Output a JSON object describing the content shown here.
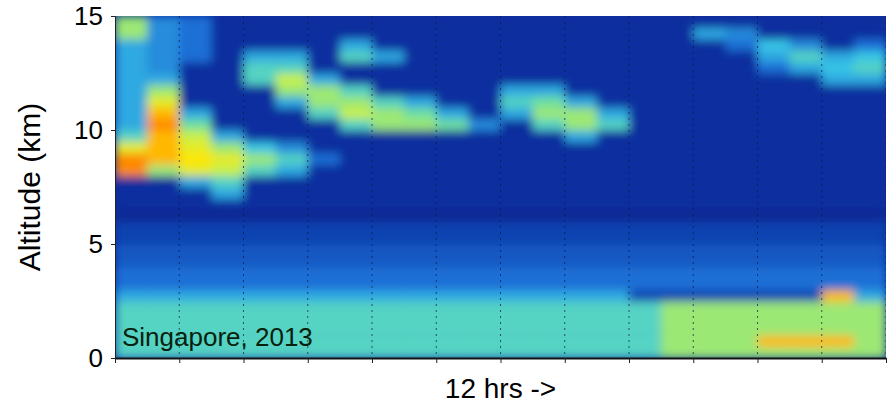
{
  "chart_data": {
    "type": "heatmap",
    "ylabel": "Altitude (km)",
    "xlabel": "12 hrs ->",
    "annotation": "Singapore, 2013",
    "xlim": [
      0,
      12
    ],
    "xticks": [
      0,
      1,
      2,
      3,
      4,
      5,
      6,
      7,
      8,
      9,
      10,
      11,
      12
    ],
    "ylim": [
      0,
      15
    ],
    "yticks": [
      0,
      5,
      10,
      15
    ],
    "tick_labels": "y",
    "grid": true,
    "zlim": [
      0,
      10
    ],
    "x": [
      0.25,
      0.75,
      1.25,
      1.75,
      2.25,
      2.75,
      3.25,
      3.75,
      4.25,
      4.75,
      5.25,
      5.75,
      6.25,
      6.75,
      7.25,
      7.75,
      8.25,
      8.75,
      9.25,
      9.75,
      10.25,
      10.75,
      11.25,
      11.75
    ],
    "y": [
      0.25,
      0.75,
      1.25,
      1.75,
      2.25,
      2.75,
      3.25,
      3.75,
      4.25,
      4.75,
      5.25,
      5.75,
      6.25,
      6.75,
      7.25,
      7.75,
      8.25,
      8.75,
      9.25,
      9.75,
      10.25,
      10.75,
      11.25,
      11.75,
      12.25,
      12.75,
      13.25,
      13.75,
      14.25,
      14.75
    ],
    "values": [
      [
        5,
        5,
        5,
        5,
        5,
        5,
        5,
        5,
        5,
        5,
        5,
        5,
        5,
        5,
        5,
        5,
        5,
        6,
        6,
        6,
        6,
        6,
        6,
        6
      ],
      [
        5,
        5,
        5,
        5,
        5,
        5,
        5,
        5,
        5,
        5,
        5,
        5,
        5,
        5,
        5,
        5,
        5,
        6,
        6,
        6,
        8,
        8,
        8,
        6
      ],
      [
        5,
        5,
        5,
        5,
        5,
        5,
        5,
        5,
        5,
        5,
        5,
        5,
        5,
        5,
        5,
        5,
        5,
        6,
        6,
        6,
        6,
        6,
        6,
        6
      ],
      [
        5,
        5,
        5,
        5,
        5,
        5,
        5,
        5,
        5,
        5,
        5,
        5,
        5,
        5,
        5,
        5,
        5,
        6,
        6,
        6,
        6,
        6,
        6,
        6
      ],
      [
        5,
        5,
        5,
        5,
        5,
        5,
        5,
        5,
        5,
        5,
        5,
        5,
        5,
        5,
        5,
        5,
        5,
        6,
        6,
        6,
        6,
        6,
        6,
        6
      ],
      [
        4,
        4,
        4,
        4,
        4,
        4,
        4,
        4,
        4,
        4,
        4,
        4,
        4,
        4,
        4,
        4,
        2,
        2,
        2,
        2,
        2,
        2,
        8,
        4
      ],
      [
        3,
        3,
        3,
        3,
        3,
        3,
        3,
        3,
        3,
        3,
        3,
        3,
        3,
        3,
        3,
        3,
        3,
        3,
        3,
        3,
        3,
        3,
        3,
        3
      ],
      [
        3,
        3,
        3,
        3,
        3,
        3,
        3,
        3,
        3,
        3,
        3,
        3,
        3,
        3,
        3,
        3,
        3,
        3,
        3,
        3,
        3,
        3,
        3,
        3
      ],
      [
        2.5,
        2.5,
        2.5,
        2.5,
        2.5,
        2.5,
        2.5,
        2.5,
        2.5,
        2.5,
        2.5,
        2.5,
        2.5,
        2.5,
        2.5,
        2.5,
        2.5,
        2.5,
        2.5,
        2.5,
        2.5,
        2.5,
        2.5,
        2.5
      ],
      [
        2.5,
        2.5,
        2.5,
        2.5,
        2.5,
        2.5,
        2.5,
        2.5,
        2.5,
        2.5,
        2.5,
        2.5,
        2.5,
        2.5,
        2.5,
        2.5,
        2.5,
        2.5,
        2.5,
        2.5,
        2.5,
        2.5,
        2.5,
        2.5
      ],
      [
        2,
        2,
        2,
        2,
        2,
        2,
        2,
        2,
        2,
        2,
        2,
        2,
        2,
        2,
        2,
        2,
        2,
        2,
        2,
        2,
        2,
        2,
        2,
        2
      ],
      [
        2,
        2,
        2,
        2,
        2,
        2,
        2,
        2,
        2,
        2,
        2,
        2,
        2,
        2,
        2,
        2,
        2,
        2,
        2,
        2,
        2,
        2,
        2,
        2
      ],
      [
        1.2,
        1.2,
        1.2,
        1.2,
        1.2,
        1.2,
        1.2,
        1.2,
        1.2,
        1.2,
        1.2,
        1.2,
        1.2,
        1.2,
        1.2,
        1.2,
        1.2,
        1.2,
        1.2,
        1.2,
        1.2,
        1.2,
        1.2,
        1.2
      ],
      [
        1.5,
        1.5,
        1.5,
        1.5,
        1.5,
        1.5,
        1.5,
        1.5,
        1.5,
        1.5,
        1.5,
        1.5,
        1.5,
        1.5,
        1.5,
        1.5,
        1.5,
        1.5,
        1.5,
        1.5,
        1.5,
        1.5,
        1.5,
        1.5
      ],
      [
        1.5,
        1.5,
        1.5,
        4,
        1.5,
        1.5,
        1.5,
        1.5,
        1.5,
        1.5,
        1.5,
        1.5,
        1.5,
        1.5,
        1.5,
        1.5,
        1.5,
        1.5,
        1.5,
        1.5,
        1.5,
        1.5,
        1.5,
        1.5
      ],
      [
        1.5,
        1.5,
        4,
        5,
        1.5,
        1.5,
        1.5,
        1.5,
        1.5,
        1.5,
        1.5,
        1.5,
        1.5,
        1.5,
        1.5,
        1.5,
        1.5,
        1.5,
        1.5,
        1.5,
        1.5,
        1.5,
        1.5,
        1.5
      ],
      [
        8.5,
        6,
        7,
        6.5,
        5,
        4,
        1.5,
        1.5,
        1.5,
        1.5,
        1.5,
        1.5,
        1.5,
        1.5,
        1.5,
        1.5,
        1.5,
        1.5,
        1.5,
        1.5,
        1.5,
        1.5,
        1.5,
        1.5
      ],
      [
        8.5,
        8,
        7.5,
        7,
        6,
        5,
        3,
        1.5,
        1.5,
        1.5,
        1.5,
        1.5,
        1.5,
        1.5,
        1.5,
        1.5,
        1.5,
        1.5,
        1.5,
        1.5,
        1.5,
        1.5,
        1.5,
        1.5
      ],
      [
        7,
        8,
        7,
        6,
        4.5,
        3.5,
        1.5,
        1.5,
        1.5,
        1.5,
        1.5,
        1.5,
        1.5,
        1.5,
        1.5,
        1.5,
        1.5,
        1.5,
        1.5,
        1.5,
        1.5,
        1.5,
        1.5,
        1.5
      ],
      [
        5,
        8,
        6.5,
        4,
        1.5,
        1.5,
        1.5,
        1.5,
        1.5,
        1.5,
        1.5,
        1.5,
        1.5,
        1.5,
        4,
        1.5,
        1.5,
        1.5,
        1.5,
        1.5,
        1.5,
        1.5,
        1.5,
        1.5
      ],
      [
        4,
        8.5,
        5.5,
        1.5,
        1.5,
        1.5,
        1.5,
        5,
        6,
        6,
        5.5,
        3.5,
        1.5,
        5,
        6,
        5,
        1.5,
        1.5,
        1.5,
        1.5,
        1.5,
        1.5,
        1.5,
        1.5
      ],
      [
        4,
        8,
        4,
        1.5,
        1.5,
        1.5,
        5,
        6.5,
        6,
        5.5,
        4,
        1.5,
        4,
        6,
        6,
        4,
        1.5,
        1.5,
        1.5,
        1.5,
        1.5,
        1.5,
        1.5,
        1.5
      ],
      [
        4,
        7,
        1.5,
        1.5,
        1.5,
        4,
        6,
        6,
        5,
        4,
        1.5,
        1.5,
        5,
        5.5,
        4,
        1.5,
        1.5,
        1.5,
        1.5,
        1.5,
        1.5,
        1.5,
        1.5,
        1.5
      ],
      [
        4,
        6,
        1.5,
        1.5,
        1.5,
        6,
        6,
        5,
        1.5,
        1.5,
        1.5,
        1.5,
        4,
        4,
        1.5,
        1.5,
        1.5,
        1.5,
        1.5,
        1.5,
        1.5,
        1.5,
        1.5,
        1.5
      ],
      [
        4,
        4,
        1.5,
        1.5,
        5,
        6.5,
        4,
        1.5,
        1.5,
        1.5,
        1.5,
        1.5,
        1.5,
        1.5,
        1.5,
        1.5,
        1.5,
        1.5,
        1.5,
        1.5,
        1.5,
        1.5,
        4,
        4
      ],
      [
        4,
        3.5,
        1.5,
        1.5,
        5,
        5,
        1.5,
        1.5,
        1.5,
        1.5,
        1.5,
        1.5,
        1.5,
        1.5,
        1.5,
        1.5,
        1.5,
        1.5,
        1.5,
        1.5,
        3,
        4,
        4.5,
        5
      ],
      [
        4,
        3.5,
        3,
        1.5,
        4,
        4,
        1.5,
        5,
        4,
        1.5,
        1.5,
        1.5,
        1.5,
        1.5,
        1.5,
        1.5,
        1.5,
        1.5,
        1.5,
        1.5,
        4,
        5,
        4,
        4.5
      ],
      [
        4,
        3.5,
        3,
        1.5,
        1.5,
        1.5,
        1.5,
        4,
        1.5,
        1.5,
        1.5,
        1.5,
        1.5,
        1.5,
        1.5,
        1.5,
        1.5,
        1.5,
        1.5,
        3,
        4.5,
        3.5,
        1.5,
        3
      ],
      [
        6,
        3.5,
        3,
        1.5,
        1.5,
        1.5,
        1.5,
        1.5,
        1.5,
        1.5,
        1.5,
        1.5,
        1.5,
        1.5,
        1.5,
        1.5,
        1.5,
        1.5,
        4,
        3.5,
        1.5,
        1.5,
        1.5,
        1.5
      ],
      [
        6,
        3.5,
        3,
        1.5,
        1.5,
        1.5,
        1.5,
        1.5,
        1.5,
        1.5,
        1.5,
        1.5,
        1.5,
        1.5,
        1.5,
        1.5,
        1.5,
        1.5,
        1.5,
        1.5,
        1.5,
        1.5,
        1.5,
        1.5
      ]
    ]
  }
}
